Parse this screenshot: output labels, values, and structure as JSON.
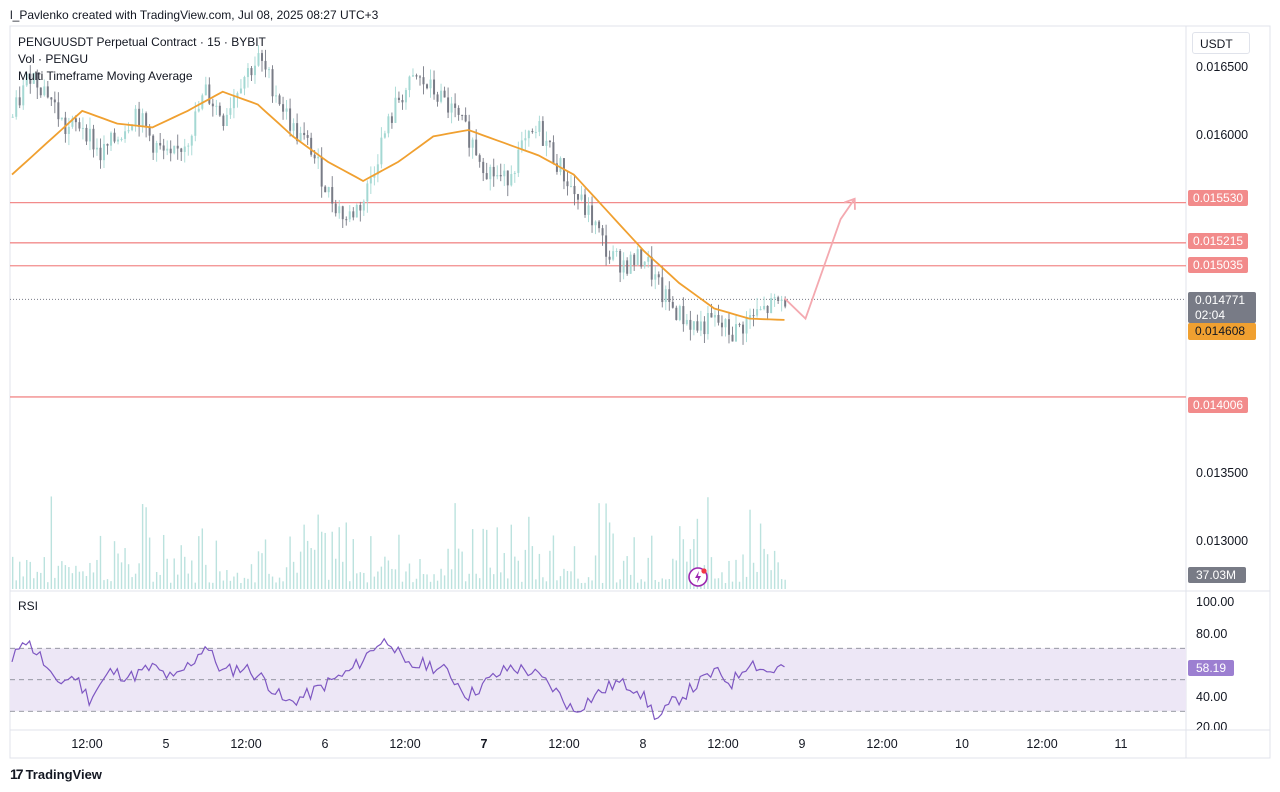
{
  "header": {
    "credit": "l_Pavlenko created with TradingView.com, Jul 08, 2025 08:27 UTC+3"
  },
  "legend": {
    "symbol": "PENGUUSDT Perpetual Contract · 15 · BYBIT",
    "volume": "Vol · PENGU",
    "indicator": "Multi Timeframe Moving Average"
  },
  "currency": "USDT",
  "price_axis": {
    "ticks": [
      "0.016500",
      "0.016000",
      "0.013500",
      "0.013000"
    ],
    "levels": [
      "0.015530",
      "0.015215",
      "0.015035",
      "0.014006"
    ],
    "last_price": "0.014771",
    "countdown": "02:04",
    "ma_value": "0.014608",
    "volume_value": "37.03M"
  },
  "rsi": {
    "title": "RSI",
    "ticks": [
      "100.00",
      "80.00",
      "40.00",
      "20.00"
    ],
    "value": "58.19"
  },
  "time_axis": {
    "labels": [
      "12:00",
      "5",
      "12:00",
      "6",
      "12:00",
      "7",
      "12:00",
      "8",
      "12:00",
      "9",
      "12:00",
      "10",
      "12:00",
      "11"
    ]
  },
  "branding": {
    "logo_text": "TradingView",
    "logo_mark": "17"
  },
  "colors": {
    "up": "#26a69a",
    "up_light": "#a4d8d3",
    "down": "#787b86",
    "ma": "#f0a030",
    "level": "#f28b8b",
    "rsi_line": "#7e57c2",
    "rsi_band": "#ede7f6"
  },
  "chart_data": {
    "type": "candlestick",
    "title": "PENGUUSDT Perpetual Contract · 15 · BYBIT",
    "ylim": [
      0.0128,
      0.0169
    ],
    "x_labels": [
      "12:00",
      "5",
      "12:00",
      "6",
      "12:00",
      "7",
      "12:00",
      "8",
      "12:00",
      "9",
      "12:00",
      "10",
      "12:00",
      "11"
    ],
    "price_path": [
      [
        0,
        0.0162
      ],
      [
        5,
        0.01655
      ],
      [
        10,
        0.0164
      ],
      [
        15,
        0.0161
      ],
      [
        20,
        0.01615
      ],
      [
        25,
        0.0159
      ],
      [
        30,
        0.01605
      ],
      [
        35,
        0.01625
      ],
      [
        40,
        0.016
      ],
      [
        45,
        0.01585
      ],
      [
        50,
        0.01605
      ],
      [
        55,
        0.0164
      ],
      [
        60,
        0.0162
      ],
      [
        65,
        0.0165
      ],
      [
        70,
        0.01665
      ],
      [
        75,
        0.0164
      ],
      [
        80,
        0.0161
      ],
      [
        85,
        0.01595
      ],
      [
        90,
        0.0156
      ],
      [
        95,
        0.0154
      ],
      [
        100,
        0.01555
      ],
      [
        105,
        0.016
      ],
      [
        110,
        0.01635
      ],
      [
        115,
        0.0165
      ],
      [
        120,
        0.0164
      ],
      [
        125,
        0.01625
      ],
      [
        130,
        0.01605
      ],
      [
        135,
        0.0158
      ],
      [
        140,
        0.0157
      ],
      [
        145,
        0.01595
      ],
      [
        150,
        0.0161
      ],
      [
        155,
        0.01585
      ],
      [
        160,
        0.0156
      ],
      [
        165,
        0.0154
      ],
      [
        170,
        0.0151
      ],
      [
        175,
        0.01505
      ],
      [
        180,
        0.0151
      ],
      [
        185,
        0.0148
      ],
      [
        190,
        0.01465
      ],
      [
        195,
        0.01455
      ],
      [
        200,
        0.0146
      ],
      [
        205,
        0.0145
      ],
      [
        210,
        0.01462
      ],
      [
        215,
        0.0147
      ],
      [
        220,
        0.01477
      ]
    ],
    "ma_path": [
      [
        0,
        0.01575
      ],
      [
        10,
        0.016
      ],
      [
        20,
        0.01625
      ],
      [
        30,
        0.01615
      ],
      [
        40,
        0.01612
      ],
      [
        50,
        0.01625
      ],
      [
        60,
        0.0164
      ],
      [
        70,
        0.0163
      ],
      [
        80,
        0.01605
      ],
      [
        90,
        0.01585
      ],
      [
        100,
        0.0157
      ],
      [
        110,
        0.01585
      ],
      [
        120,
        0.01605
      ],
      [
        130,
        0.0161
      ],
      [
        140,
        0.016
      ],
      [
        150,
        0.0159
      ],
      [
        160,
        0.01575
      ],
      [
        170,
        0.01545
      ],
      [
        180,
        0.01515
      ],
      [
        190,
        0.0149
      ],
      [
        200,
        0.0147
      ],
      [
        210,
        0.01462
      ],
      [
        220,
        0.01461
      ]
    ],
    "levels": [
      0.01553,
      0.015215,
      0.015035,
      0.014006
    ],
    "last_price": 0.014771,
    "projection": [
      [
        220,
        0.01478
      ],
      [
        226,
        0.01462
      ],
      [
        236,
        0.0154
      ],
      [
        240,
        0.01556
      ]
    ],
    "rsi": {
      "ylim": [
        20,
        100
      ],
      "upper": 70,
      "middle": 50,
      "lower": 30,
      "value": 58.19,
      "path": [
        [
          0,
          60
        ],
        [
          3,
          77
        ],
        [
          8,
          65
        ],
        [
          12,
          48
        ],
        [
          18,
          52
        ],
        [
          22,
          38
        ],
        [
          28,
          55
        ],
        [
          34,
          52
        ],
        [
          40,
          58
        ],
        [
          46,
          50
        ],
        [
          52,
          63
        ],
        [
          55,
          72
        ],
        [
          60,
          55
        ],
        [
          66,
          58
        ],
        [
          72,
          50
        ],
        [
          78,
          35
        ],
        [
          84,
          40
        ],
        [
          90,
          48
        ],
        [
          96,
          55
        ],
        [
          100,
          63
        ],
        [
          104,
          73
        ],
        [
          108,
          75
        ],
        [
          112,
          58
        ],
        [
          118,
          60
        ],
        [
          124,
          55
        ],
        [
          130,
          40
        ],
        [
          136,
          50
        ],
        [
          142,
          58
        ],
        [
          148,
          55
        ],
        [
          154,
          45
        ],
        [
          160,
          30
        ],
        [
          166,
          40
        ],
        [
          172,
          48
        ],
        [
          178,
          45
        ],
        [
          184,
          25
        ],
        [
          188,
          35
        ],
        [
          194,
          45
        ],
        [
          200,
          55
        ],
        [
          205,
          48
        ],
        [
          210,
          62
        ],
        [
          215,
          55
        ],
        [
          220,
          58.19
        ]
      ]
    }
  }
}
